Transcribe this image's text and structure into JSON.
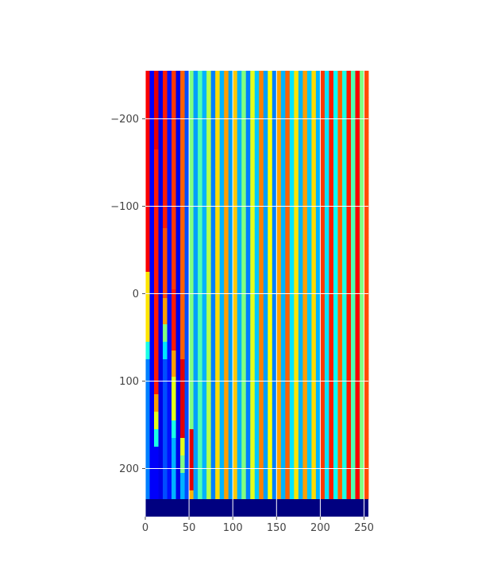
{
  "chart_data": {
    "type": "heatmap",
    "title": "",
    "xlabel": "",
    "ylabel": "",
    "xlim": [
      0,
      255
    ],
    "ylim": [
      -255,
      255
    ],
    "y_axis_inverted": true,
    "grid": true,
    "colormap": "jet",
    "colorbar": false,
    "x_ticks": [
      {
        "value": 0,
        "label": "0"
      },
      {
        "value": 50,
        "label": "50"
      },
      {
        "value": 100,
        "label": "100"
      },
      {
        "value": 150,
        "label": "150"
      },
      {
        "value": 200,
        "label": "200"
      },
      {
        "value": 250,
        "label": "250"
      }
    ],
    "y_ticks": [
      {
        "value": -200,
        "label": "−200"
      },
      {
        "value": -100,
        "label": "−100"
      },
      {
        "value": 0,
        "label": "0"
      },
      {
        "value": 100,
        "label": "100"
      },
      {
        "value": 200,
        "label": "200"
      }
    ],
    "column_width": 5,
    "row_height": 10,
    "filled_rows_y_max": 235,
    "bottom_band": {
      "y_from": 235,
      "y_to": 255,
      "value": 0.0
    },
    "columns": [
      {
        "x": 0,
        "base": 0.88,
        "spikes": [
          [
            -30,
            0.65
          ],
          [
            50,
            0.4
          ],
          [
            70,
            0.25
          ]
        ]
      },
      {
        "x": 5,
        "base": 0.12
      },
      {
        "x": 10,
        "base": 0.9,
        "spikes": [
          [
            -170,
            0.85
          ],
          [
            110,
            0.72
          ],
          [
            130,
            0.6
          ],
          [
            150,
            0.4
          ],
          [
            170,
            0.12
          ]
        ]
      },
      {
        "x": 15,
        "base": 0.1
      },
      {
        "x": 20,
        "base": 0.85,
        "spikes": [
          [
            -80,
            0.8
          ],
          [
            0,
            0.72
          ],
          [
            30,
            0.5
          ],
          [
            50,
            0.35
          ],
          [
            70,
            0.2
          ]
        ]
      },
      {
        "x": 25,
        "base": 0.14
      },
      {
        "x": 30,
        "base": 0.82,
        "spikes": [
          [
            -5,
            0.85
          ],
          [
            60,
            0.72
          ],
          [
            90,
            0.6
          ],
          [
            140,
            0.4
          ],
          [
            160,
            0.3
          ]
        ]
      },
      {
        "x": 35,
        "base": 0.1
      },
      {
        "x": 40,
        "base": 0.78,
        "spikes": [
          [
            70,
            0.9
          ],
          [
            160,
            0.6
          ],
          [
            180,
            0.5
          ],
          [
            200,
            0.3
          ]
        ]
      },
      {
        "x": 45,
        "base": 0.2
      },
      {
        "x": 50,
        "base": 0.5,
        "spikes": [
          [
            150,
            0.9
          ],
          [
            220,
            0.7
          ]
        ]
      },
      {
        "x": 55,
        "base": 0.28
      },
      {
        "x": 60,
        "base": 0.45
      },
      {
        "x": 65,
        "base": 0.3
      },
      {
        "x": 70,
        "base": 0.55
      },
      {
        "x": 75,
        "base": 0.25
      },
      {
        "x": 80,
        "base": 0.66
      },
      {
        "x": 85,
        "base": 0.3
      },
      {
        "x": 90,
        "base": 0.72
      },
      {
        "x": 95,
        "base": 0.28
      },
      {
        "x": 100,
        "base": 0.68
      },
      {
        "x": 105,
        "base": 0.3
      },
      {
        "x": 110,
        "base": 0.5
      },
      {
        "x": 115,
        "base": 0.25
      },
      {
        "x": 120,
        "base": 0.6
      },
      {
        "x": 125,
        "base": 0.32
      },
      {
        "x": 130,
        "base": 0.75
      },
      {
        "x": 135,
        "base": 0.28
      },
      {
        "x": 140,
        "base": 0.62
      },
      {
        "x": 145,
        "base": 0.25
      },
      {
        "x": 150,
        "base": 0.72
      },
      {
        "x": 155,
        "base": 0.3
      },
      {
        "x": 160,
        "base": 0.78
      },
      {
        "x": 165,
        "base": 0.35
      },
      {
        "x": 170,
        "base": 0.65
      },
      {
        "x": 175,
        "base": 0.3
      },
      {
        "x": 180,
        "base": 0.72
      },
      {
        "x": 185,
        "base": 0.32
      },
      {
        "x": 190,
        "base": 0.66
      },
      {
        "x": 195,
        "base": 0.3
      },
      {
        "x": 200,
        "base": 0.82
      },
      {
        "x": 205,
        "base": 0.35
      },
      {
        "x": 210,
        "base": 0.85
      },
      {
        "x": 215,
        "base": 0.38
      },
      {
        "x": 220,
        "base": 0.78
      },
      {
        "x": 225,
        "base": 0.4
      },
      {
        "x": 230,
        "base": 0.85
      },
      {
        "x": 235,
        "base": 0.45
      },
      {
        "x": 240,
        "base": 0.88
      },
      {
        "x": 245,
        "base": 0.5
      },
      {
        "x": 250,
        "base": 0.8
      }
    ]
  }
}
